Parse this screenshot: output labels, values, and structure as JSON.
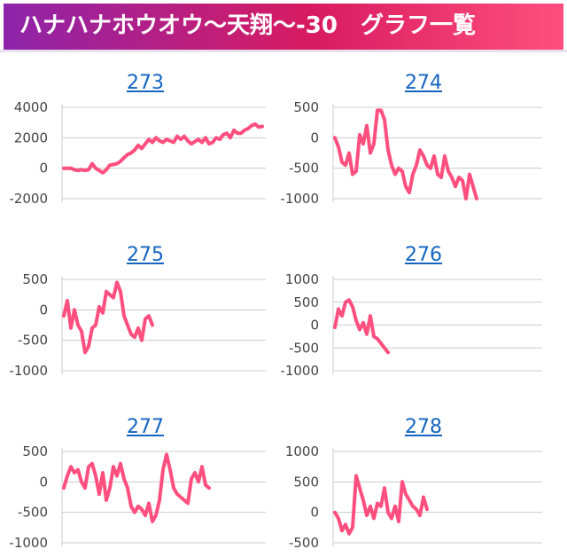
{
  "header": {
    "title": "ハナハナホウオウ〜天翔〜-30　グラフ一覧"
  },
  "colors": {
    "line": "#ff4f7e",
    "grid": "#cccccc",
    "title_link": "#1565c0"
  },
  "chart_data": [
    {
      "type": "line",
      "title": "273",
      "ylim": [
        -2000,
        4000
      ],
      "yticks": [
        4000,
        2000,
        0,
        -2000
      ],
      "ytick_labels": [
        "4000",
        "2000",
        "0",
        "-2000"
      ],
      "values": [
        0,
        0,
        0,
        -100,
        -150,
        -100,
        -150,
        -100,
        300,
        0,
        -150,
        -300,
        -100,
        200,
        250,
        300,
        450,
        700,
        900,
        1000,
        1200,
        1500,
        1300,
        1600,
        1900,
        1700,
        2000,
        1800,
        1700,
        1900,
        1800,
        1700,
        2100,
        1900,
        2100,
        1800,
        1600,
        1750,
        1900,
        1700,
        2000,
        1600,
        1700,
        2000,
        1900,
        2200,
        2300,
        2000,
        2500,
        2300,
        2300,
        2500,
        2600,
        2800,
        2900,
        2700,
        2750
      ]
    },
    {
      "type": "line",
      "title": "274",
      "ylim": [
        -1000,
        500
      ],
      "yticks": [
        500,
        0,
        -500,
        -1000
      ],
      "ytick_labels": [
        "500",
        "0",
        "-500",
        "-1000"
      ],
      "values": [
        0,
        -150,
        -400,
        -450,
        -250,
        -600,
        -550,
        50,
        -100,
        200,
        -250,
        -100,
        450,
        450,
        300,
        -200,
        -450,
        -600,
        -500,
        -550,
        -800,
        -900,
        -600,
        -450,
        -200,
        -300,
        -450,
        -500,
        -300,
        -600,
        -650,
        -300,
        -550,
        -650,
        -800,
        -650,
        -700,
        -1000,
        -600,
        -800,
        -1000
      ]
    },
    {
      "type": "line",
      "title": "275",
      "ylim": [
        -1000,
        500
      ],
      "yticks": [
        500,
        0,
        -500,
        -1000
      ],
      "ytick_labels": [
        "500",
        "0",
        "-500",
        "-1000"
      ],
      "values": [
        -100,
        150,
        -300,
        0,
        -250,
        -350,
        -700,
        -600,
        -300,
        -250,
        50,
        -50,
        300,
        250,
        200,
        450,
        300,
        -100,
        -250,
        -400,
        -450,
        -300,
        -500,
        -150,
        -100,
        -250
      ]
    },
    {
      "type": "line",
      "title": "276",
      "ylim": [
        -1000,
        1000
      ],
      "yticks": [
        1000,
        500,
        0,
        -500,
        -1000
      ],
      "ytick_labels": [
        "1000",
        "500",
        "0",
        "-500",
        "-1000"
      ],
      "values": [
        -50,
        350,
        200,
        500,
        550,
        400,
        100,
        -100,
        50,
        -200,
        200,
        -250,
        -300,
        -400,
        -500,
        -600
      ]
    },
    {
      "type": "line",
      "title": "277",
      "ylim": [
        -1000,
        500
      ],
      "yticks": [
        500,
        0,
        -500,
        -1000
      ],
      "ytick_labels": [
        "500",
        "0",
        "-500",
        "-1000"
      ],
      "values": [
        -100,
        100,
        250,
        150,
        200,
        0,
        -100,
        250,
        300,
        100,
        -200,
        150,
        -300,
        -100,
        250,
        100,
        300,
        50,
        -100,
        -400,
        -500,
        -400,
        -450,
        -550,
        -350,
        -650,
        -550,
        -300,
        200,
        450,
        200,
        -100,
        -200,
        -250,
        -300,
        -350,
        50,
        150,
        0,
        250,
        -50,
        -100
      ]
    },
    {
      "type": "line",
      "title": "278",
      "ylim": [
        -500,
        1000
      ],
      "yticks": [
        1000,
        500,
        0,
        -500
      ],
      "ytick_labels": [
        "1000",
        "500",
        "0",
        "-500"
      ],
      "values": [
        0,
        -100,
        -300,
        -200,
        -350,
        -250,
        600,
        400,
        200,
        -50,
        100,
        -100,
        150,
        100,
        400,
        0,
        -100,
        100,
        -150,
        500,
        300,
        200,
        100,
        50,
        -50,
        250,
        50
      ]
    }
  ]
}
